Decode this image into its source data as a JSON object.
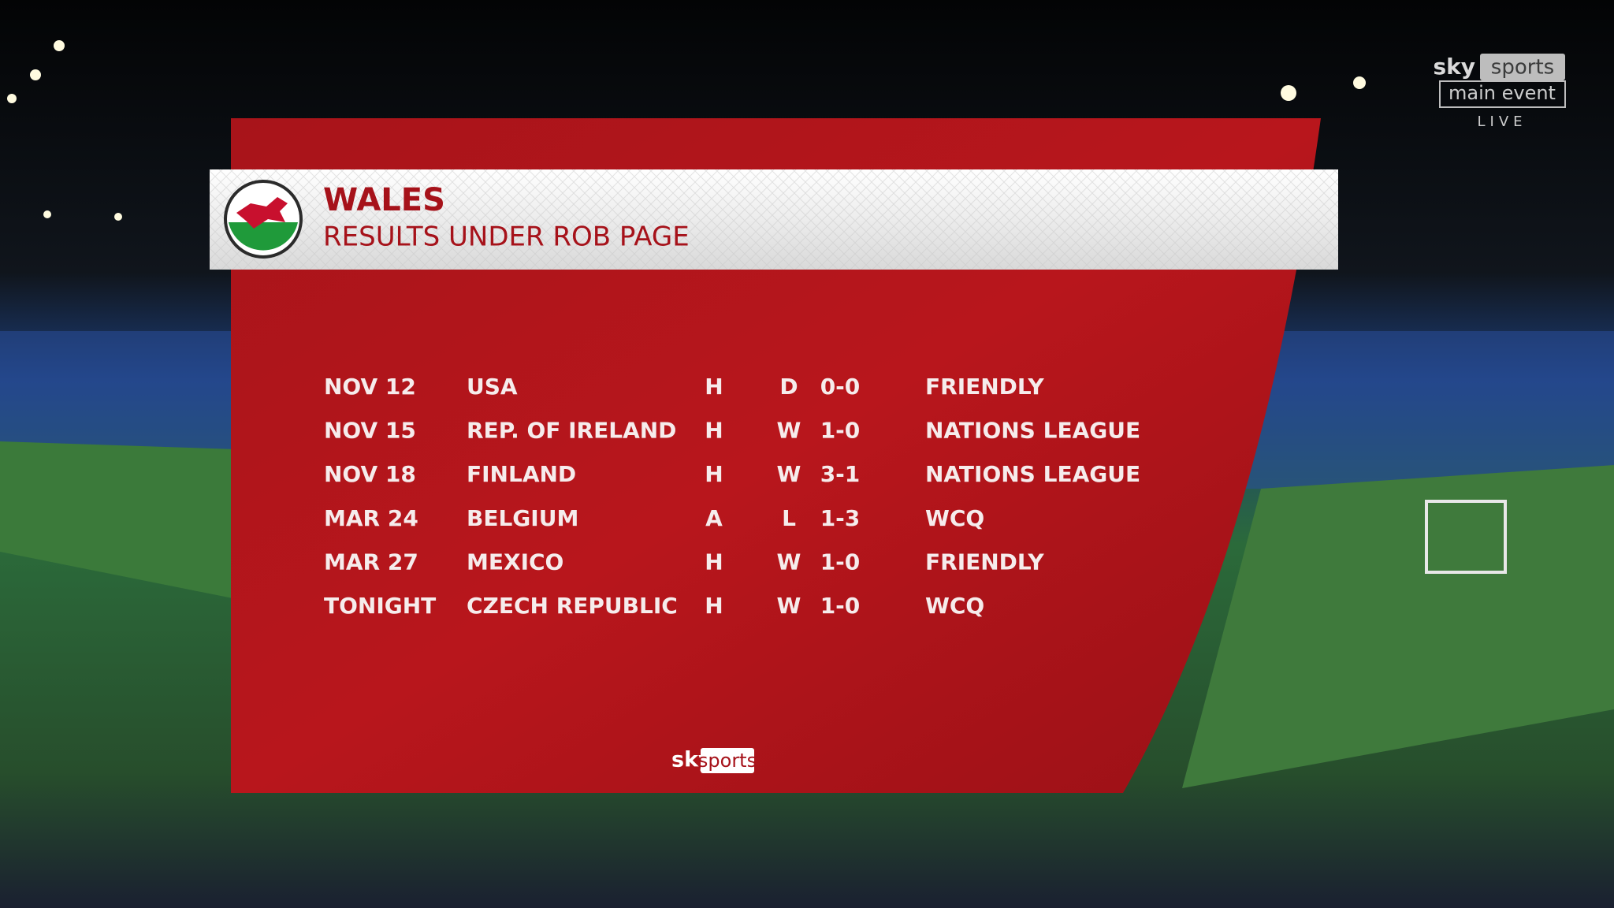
{
  "header": {
    "title": "WALES",
    "subtitle": "RESULTS UNDER ROB PAGE"
  },
  "table": {
    "rows": [
      [
        "NOV 12",
        "USA",
        "H",
        "D",
        "0-0",
        "FRIENDLY"
      ],
      [
        "NOV 15",
        "REP. OF IRELAND",
        "H",
        "W",
        "1-0",
        "NATIONS LEAGUE"
      ],
      [
        "NOV 18",
        "FINLAND",
        "H",
        "W",
        "3-1",
        "NATIONS LEAGUE"
      ],
      [
        "MAR 24",
        "BELGIUM",
        "A",
        "L",
        "1-3",
        "WCQ"
      ],
      [
        "MAR 27",
        "MEXICO",
        "H",
        "W",
        "1-0",
        "FRIENDLY"
      ],
      [
        "TONIGHT",
        "CZECH REPUBLIC",
        "H",
        "W",
        "1-0",
        "WCQ"
      ]
    ]
  },
  "footer_logo": {
    "sky": "sky",
    "sports": "sports"
  },
  "channel_logo": {
    "sky": "sky",
    "sports": "sports",
    "channel": "main event",
    "live": "LIVE"
  }
}
